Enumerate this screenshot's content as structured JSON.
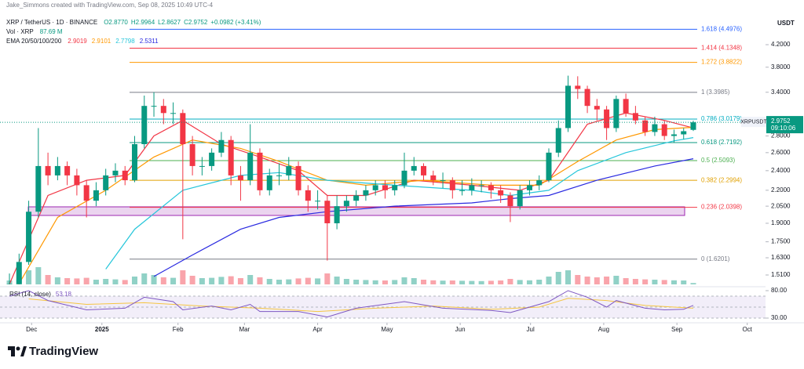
{
  "header": {
    "credit": "Jake_Simmons created with TradingView.com, Sep 08, 2025 10:49 UTC-4",
    "symbol": "XRP / TetherUS · 1D · BINANCE",
    "ohlc_labels": [
      "O2.8770",
      "H2.9964",
      "L2.8627",
      "C2.9752"
    ],
    "change_label": "+0.0982 (+3.41%)",
    "vol_title": "Vol · XRP",
    "vol_label": "87.69 M",
    "ema_title": "EMA 20/50/100/200",
    "currency": "USDT",
    "ticker_tag": "XRPUSDT",
    "countdown": "09:10:06",
    "brand": "TradingView"
  },
  "chart_data": {
    "type": "candlestick",
    "log_scale": true,
    "grid": false,
    "up_color": "#089981",
    "down_color": "#f23645",
    "xlim": [
      -0.98,
      78.5
    ],
    "xticks": [
      {
        "value": 2.3,
        "label": "Dec"
      },
      {
        "value": 9.6,
        "label": "2025"
      },
      {
        "value": 17.5,
        "label": "Feb"
      },
      {
        "value": 24.4,
        "label": "Mar"
      },
      {
        "value": 32.0,
        "label": "Apr"
      },
      {
        "value": 39.2,
        "label": "May"
      },
      {
        "value": 46.8,
        "label": "Jun"
      },
      {
        "value": 54.1,
        "label": "Jul"
      },
      {
        "value": 61.7,
        "label": "Aug"
      },
      {
        "value": 69.3,
        "label": "Sep"
      },
      {
        "value": 76.6,
        "label": "Oct"
      }
    ],
    "ylim": [
      1.4635,
      4.614
    ],
    "yticks": [
      {
        "value": 4.2,
        "label": "4.2000"
      },
      {
        "value": 3.8,
        "label": "3.8000"
      },
      {
        "value": 3.4,
        "label": "3.4000"
      },
      {
        "value": 2.8,
        "label": "2.8000"
      },
      {
        "value": 2.6,
        "label": "2.6000"
      },
      {
        "value": 2.4,
        "label": "2.4000"
      },
      {
        "value": 2.2,
        "label": "2.2000"
      },
      {
        "value": 2.05,
        "label": "2.0500"
      },
      {
        "value": 1.9,
        "label": "1.9000"
      },
      {
        "value": 1.75,
        "label": "1.7500"
      },
      {
        "value": 1.63,
        "label": "1.6300"
      },
      {
        "value": 1.51,
        "label": "1.5100"
      }
    ],
    "open": [
      1.4,
      1.45,
      1.6,
      2.0,
      2.45,
      2.35,
      2.45,
      2.35,
      2.25,
      2.1,
      2.2,
      2.35,
      2.4,
      2.3,
      2.7,
      3.2,
      3.2,
      3.1,
      3.1,
      2.7,
      2.45,
      2.45,
      2.6,
      2.75,
      2.35,
      2.3,
      2.6,
      2.2,
      2.35,
      2.35,
      2.45,
      2.2,
      2.1,
      2.1,
      1.9,
      2.05,
      2.1,
      2.15,
      2.2,
      2.25,
      2.2,
      2.25,
      2.4,
      2.45,
      2.35,
      2.3,
      2.3,
      2.2,
      2.2,
      2.25,
      2.25,
      2.2,
      2.15,
      2.05,
      2.2,
      2.25,
      2.3,
      2.6,
      2.9,
      3.5,
      3.45,
      3.2,
      3.15,
      2.9,
      3.3,
      3.1,
      3.0,
      2.85,
      2.95,
      2.8,
      2.82,
      2.877
    ],
    "high": [
      1.52,
      1.66,
      2.1,
      2.9,
      2.6,
      2.55,
      2.5,
      2.42,
      2.3,
      2.28,
      2.42,
      2.48,
      2.45,
      2.8,
      3.35,
      3.4,
      3.3,
      3.25,
      3.15,
      2.8,
      2.55,
      2.65,
      2.85,
      2.8,
      2.45,
      2.95,
      2.65,
      2.42,
      2.48,
      2.55,
      2.5,
      2.25,
      2.2,
      2.15,
      2.15,
      2.15,
      2.2,
      2.25,
      2.3,
      2.3,
      2.3,
      2.6,
      2.55,
      2.48,
      2.4,
      2.38,
      2.33,
      2.3,
      2.32,
      2.3,
      2.28,
      2.25,
      2.18,
      2.25,
      2.3,
      2.35,
      2.65,
      3.0,
      3.66,
      3.65,
      3.5,
      3.3,
      3.2,
      3.35,
      3.38,
      3.2,
      3.05,
      3.05,
      3.0,
      2.88,
      2.9,
      2.9964
    ],
    "low": [
      1.36,
      1.42,
      1.58,
      1.95,
      2.25,
      2.3,
      2.25,
      2.15,
      1.95,
      2.05,
      2.15,
      2.28,
      2.25,
      2.28,
      2.65,
      3.05,
      2.95,
      2.95,
      1.77,
      2.35,
      2.35,
      2.4,
      2.55,
      2.25,
      2.1,
      2.25,
      2.15,
      2.15,
      2.25,
      2.3,
      2.15,
      2.0,
      2.02,
      1.61,
      1.85,
      2.0,
      2.05,
      2.1,
      2.15,
      2.12,
      2.15,
      2.22,
      2.35,
      2.3,
      2.25,
      2.22,
      2.12,
      2.15,
      2.15,
      2.18,
      2.12,
      2.08,
      1.91,
      2.02,
      2.15,
      2.2,
      2.28,
      2.55,
      2.85,
      3.3,
      3.1,
      3.0,
      2.75,
      2.85,
      3.05,
      2.95,
      2.8,
      2.8,
      2.75,
      2.72,
      2.76,
      2.8627
    ],
    "close": [
      1.45,
      1.6,
      2.0,
      2.45,
      2.35,
      2.45,
      2.35,
      2.25,
      2.1,
      2.2,
      2.35,
      2.4,
      2.3,
      2.7,
      3.2,
      3.2,
      3.1,
      3.1,
      2.7,
      2.45,
      2.45,
      2.6,
      2.75,
      2.35,
      2.3,
      2.6,
      2.2,
      2.35,
      2.35,
      2.45,
      2.2,
      2.1,
      2.1,
      1.9,
      2.05,
      2.1,
      2.15,
      2.2,
      2.25,
      2.2,
      2.25,
      2.4,
      2.45,
      2.35,
      2.3,
      2.3,
      2.2,
      2.2,
      2.25,
      2.25,
      2.2,
      2.15,
      2.05,
      2.2,
      2.25,
      2.3,
      2.6,
      2.9,
      3.5,
      3.45,
      3.2,
      3.15,
      2.9,
      3.3,
      3.1,
      3.0,
      2.85,
      2.95,
      2.8,
      2.82,
      2.86,
      2.9752
    ],
    "volume": {
      "values": [
        250,
        300,
        900,
        1100,
        600,
        450,
        400,
        380,
        420,
        300,
        350,
        320,
        280,
        500,
        700,
        600,
        450,
        420,
        900,
        550,
        400,
        420,
        480,
        520,
        400,
        600,
        450,
        350,
        300,
        320,
        380,
        420,
        380,
        700,
        500,
        350,
        300,
        280,
        260,
        250,
        280,
        450,
        400,
        300,
        260,
        240,
        250,
        230,
        220,
        210,
        230,
        250,
        350,
        280,
        260,
        300,
        500,
        800,
        900,
        600,
        500,
        450,
        500,
        550,
        400,
        350,
        320,
        300,
        280,
        260,
        250,
        87.69
      ]
    },
    "ema": [
      {
        "color": "#f23645",
        "x": [
          0,
          4,
          8,
          12,
          15,
          18,
          22,
          26,
          30,
          33,
          37,
          42,
          48,
          53,
          56,
          60,
          64,
          68,
          71
        ],
        "values": [
          1.45,
          2.15,
          2.3,
          2.35,
          2.8,
          3.0,
          2.7,
          2.55,
          2.4,
          2.15,
          2.15,
          2.3,
          2.25,
          2.2,
          2.3,
          2.95,
          3.1,
          3.0,
          2.9019
        ]
      },
      {
        "color": "#ff9800",
        "x": [
          0,
          5,
          10,
          15,
          19,
          24,
          28,
          33,
          37,
          43,
          50,
          55,
          59,
          63,
          67,
          71
        ],
        "values": [
          1.35,
          1.95,
          2.2,
          2.55,
          2.75,
          2.65,
          2.5,
          2.3,
          2.25,
          2.3,
          2.25,
          2.25,
          2.5,
          2.75,
          2.88,
          2.9101
        ]
      },
      {
        "color": "#26c6da",
        "x": [
          10,
          13,
          18,
          24,
          28,
          33,
          40,
          48,
          52,
          56,
          59,
          64,
          69,
          71
        ],
        "values": [
          1.55,
          1.85,
          2.2,
          2.35,
          2.38,
          2.3,
          2.25,
          2.2,
          2.15,
          2.2,
          2.4,
          2.6,
          2.74,
          2.7798
        ]
      },
      {
        "color": "#2a2ae0",
        "x": [
          15,
          19,
          24,
          28,
          33,
          40,
          48,
          52,
          56,
          61,
          67,
          71
        ],
        "values": [
          1.5,
          1.65,
          1.85,
          1.95,
          2.0,
          2.05,
          2.08,
          2.12,
          2.15,
          2.3,
          2.45,
          2.5311
        ]
      }
    ],
    "fib_levels": [
      {
        "label": "1.618 (4.4976)",
        "value": 4.4976,
        "color": "#2962ff"
      },
      {
        "label": "1.414 (4.1348)",
        "value": 4.1348,
        "color": "#f23645"
      },
      {
        "label": "1.272 (3.8822)",
        "value": 3.8822,
        "color": "#ff9800"
      },
      {
        "label": "1 (3.3985)",
        "value": 3.3985,
        "color": "#787b86"
      },
      {
        "label": "0.786 (3.0179)",
        "value": 3.0179,
        "color": "#00acc1"
      },
      {
        "label": "0.618 (2.7192)",
        "value": 2.7192,
        "color": "#089981"
      },
      {
        "label": "0.5 (2.5093)",
        "value": 2.5093,
        "color": "#4caf50"
      },
      {
        "label": "0.382 (2.2994)",
        "value": 2.2994,
        "color": "#e0a000"
      },
      {
        "label": "0.236 (2.0398)",
        "value": 2.0398,
        "color": "#f23645"
      },
      {
        "label": "0 (1.6201)",
        "value": 1.6201,
        "color": "#787b86"
      }
    ],
    "rsi": {
      "title": "RSI (14, close)",
      "color": "#7e57c2",
      "x": [
        0,
        2,
        4,
        8,
        12,
        14,
        17,
        18,
        21,
        23,
        25,
        26,
        30,
        33,
        36,
        41,
        45,
        50,
        52,
        56,
        58,
        60,
        62,
        63,
        66,
        68,
        70,
        71
      ],
      "values": [
        70,
        80,
        62,
        45,
        48,
        68,
        60,
        45,
        52,
        45,
        55,
        42,
        42,
        32,
        48,
        60,
        48,
        44,
        40,
        60,
        80,
        68,
        50,
        62,
        48,
        45,
        46,
        53.18
      ],
      "ma": {
        "color": "#f5c542",
        "x": [
          2,
          8,
          14,
          20,
          26,
          32,
          38,
          44,
          50,
          55,
          58,
          62,
          66,
          71
        ],
        "values": [
          65,
          55,
          58,
          52,
          48,
          42,
          48,
          52,
          46,
          50,
          66,
          62,
          53,
          48
        ]
      },
      "ylim": [
        24.3,
        84.3
      ],
      "yticks": [
        {
          "value": 80,
          "label": "80.00"
        },
        {
          "value": 30,
          "label": "30.00"
        }
      ],
      "levels": [
        30,
        50,
        70
      ]
    }
  }
}
